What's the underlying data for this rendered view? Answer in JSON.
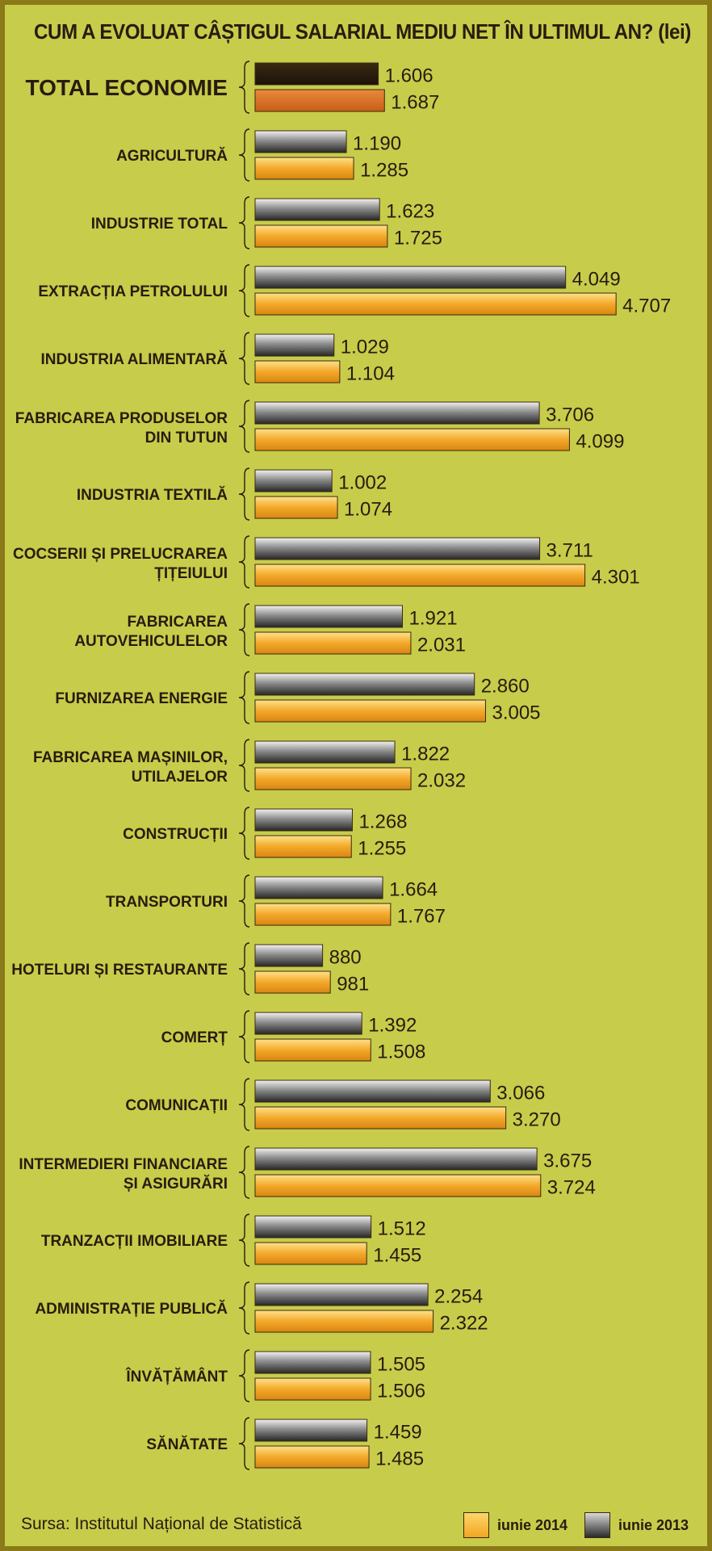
{
  "chart_data": {
    "type": "bar",
    "title": "CUM A EVOLUAT CÂȘTIGUL SALARIAL MEDIU NET ÎN ULTIMUL AN? (lei)",
    "categories": [
      "TOTAL ECONOMIE",
      "AGRICULTURĂ",
      "INDUSTRIE TOTAL",
      "EXTRACȚIA PETROLULUI",
      "INDUSTRIA ALIMENTARĂ",
      "FABRICAREA PRODUSELOR\nDIN TUTUN",
      "INDUSTRIA TEXTILĂ",
      "COCSERII ȘI PRELUCRAREA\nȚIȚEIULUI",
      "FABRICAREA\nAUTOVEHICULELOR",
      "FURNIZAREA ENERGIE",
      "FABRICAREA MAȘINILOR,\nUTILAJELOR",
      "CONSTRUCȚII",
      "TRANSPORTURI",
      "HOTELURI ȘI RESTAURANTE",
      "COMERȚ",
      "COMUNICAȚII",
      "INTERMEDIERI FINANCIARE\nȘI ASIGURĂRI",
      "TRANZACȚII IMOBILIARE",
      "ADMINISTRAȚIE PUBLICĂ",
      "ÎNVĂȚĂMÂNT",
      "SĂNĂTATE"
    ],
    "series": [
      {
        "name": "iunie 2013",
        "color": "#5a5a5a",
        "values": [
          1606,
          1190,
          1623,
          4049,
          1029,
          3706,
          1002,
          3711,
          1921,
          2860,
          1822,
          1268,
          1664,
          880,
          1392,
          3066,
          3675,
          1512,
          2254,
          1505,
          1459
        ],
        "labels": [
          "1.606",
          "1.190",
          "1.623",
          "4.049",
          "1.029",
          "3.706",
          "1.002",
          "3.711",
          "1.921",
          "2.860",
          "1.822",
          "1.268",
          "1.664",
          "880",
          "1.392",
          "3.066",
          "3.675",
          "1.512",
          "2.254",
          "1.505",
          "1.459"
        ]
      },
      {
        "name": "iunie 2014",
        "color": "#f0a623",
        "values": [
          1687,
          1285,
          1725,
          4707,
          1104,
          4099,
          1074,
          4301,
          2031,
          3005,
          2032,
          1255,
          1767,
          981,
          1508,
          3270,
          3724,
          1455,
          2322,
          1506,
          1485
        ],
        "labels": [
          "1.687",
          "1.285",
          "1.725",
          "4.707",
          "1.104",
          "4.099",
          "1.074",
          "4.301",
          "2.031",
          "3.005",
          "2.032",
          "1.255",
          "1.767",
          "981",
          "1.508",
          "3.270",
          "3.724",
          "1.455",
          "2.322",
          "1.506",
          "1.485"
        ]
      }
    ],
    "highlight_colors": {
      "total_2013": "#2a1d0c",
      "total_2014": "#d86f25"
    },
    "source": "Sursa: Institutul Național de Statistică",
    "legend_placement": "bottom-right",
    "grid": false
  }
}
